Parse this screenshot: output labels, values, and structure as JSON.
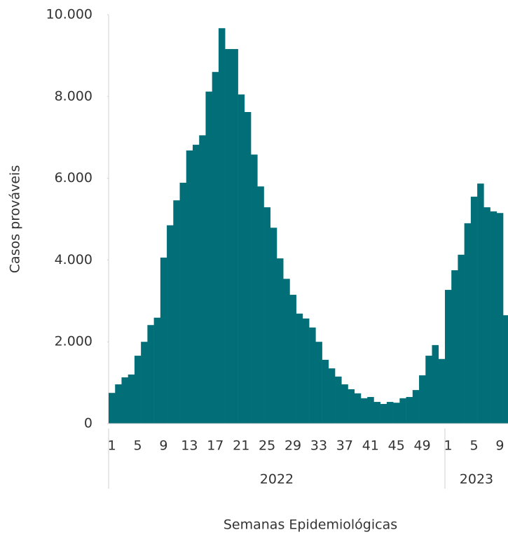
{
  "chart_data": {
    "type": "bar",
    "y_label": "Casos prováveis",
    "x_label": "Semanas Epidemiológicas",
    "color": "#026f78",
    "ylim": [
      0,
      10000
    ],
    "yticks": [
      0,
      {
        "value": 2000,
        "label": "2.000"
      },
      {
        "value": 4000,
        "label": "4.000"
      },
      {
        "value": 6000,
        "label": "6.000"
      },
      {
        "value": 8000,
        "label": "8.000"
      },
      {
        "value": 10000,
        "label": "10.000"
      }
    ],
    "groups": [
      {
        "name": "2022",
        "categories": [
          "1",
          null,
          null,
          null,
          "5",
          null,
          null,
          null,
          "9",
          null,
          null,
          null,
          "13",
          null,
          null,
          null,
          "17",
          null,
          null,
          null,
          "21",
          null,
          null,
          null,
          "25",
          null,
          null,
          null,
          "29",
          null,
          null,
          null,
          "33",
          null,
          null,
          null,
          "37",
          null,
          null,
          null,
          "41",
          null,
          null,
          null,
          "45",
          null,
          null,
          null,
          "49",
          null,
          null,
          null
        ],
        "values": [
          750,
          960,
          1130,
          1200,
          1660,
          2000,
          2410,
          2590,
          4060,
          4850,
          5460,
          5890,
          6680,
          6820,
          7050,
          8120,
          8600,
          9670,
          9160,
          9160,
          8050,
          7620,
          6580,
          5800,
          5290,
          4790,
          4040,
          3540,
          3150,
          2690,
          2570,
          2350,
          2000,
          1560,
          1350,
          1150,
          960,
          840,
          740,
          620,
          650,
          530,
          480,
          530,
          510,
          620,
          650,
          820,
          1180,
          1660,
          1920,
          1580
        ]
      },
      {
        "name": "2023",
        "categories": [
          "1",
          null,
          null,
          null,
          "5",
          null,
          null,
          null,
          "9",
          null
        ],
        "values": [
          3270,
          3750,
          4130,
          4900,
          5550,
          5870,
          5290,
          5190,
          5150,
          2650
        ]
      }
    ]
  }
}
